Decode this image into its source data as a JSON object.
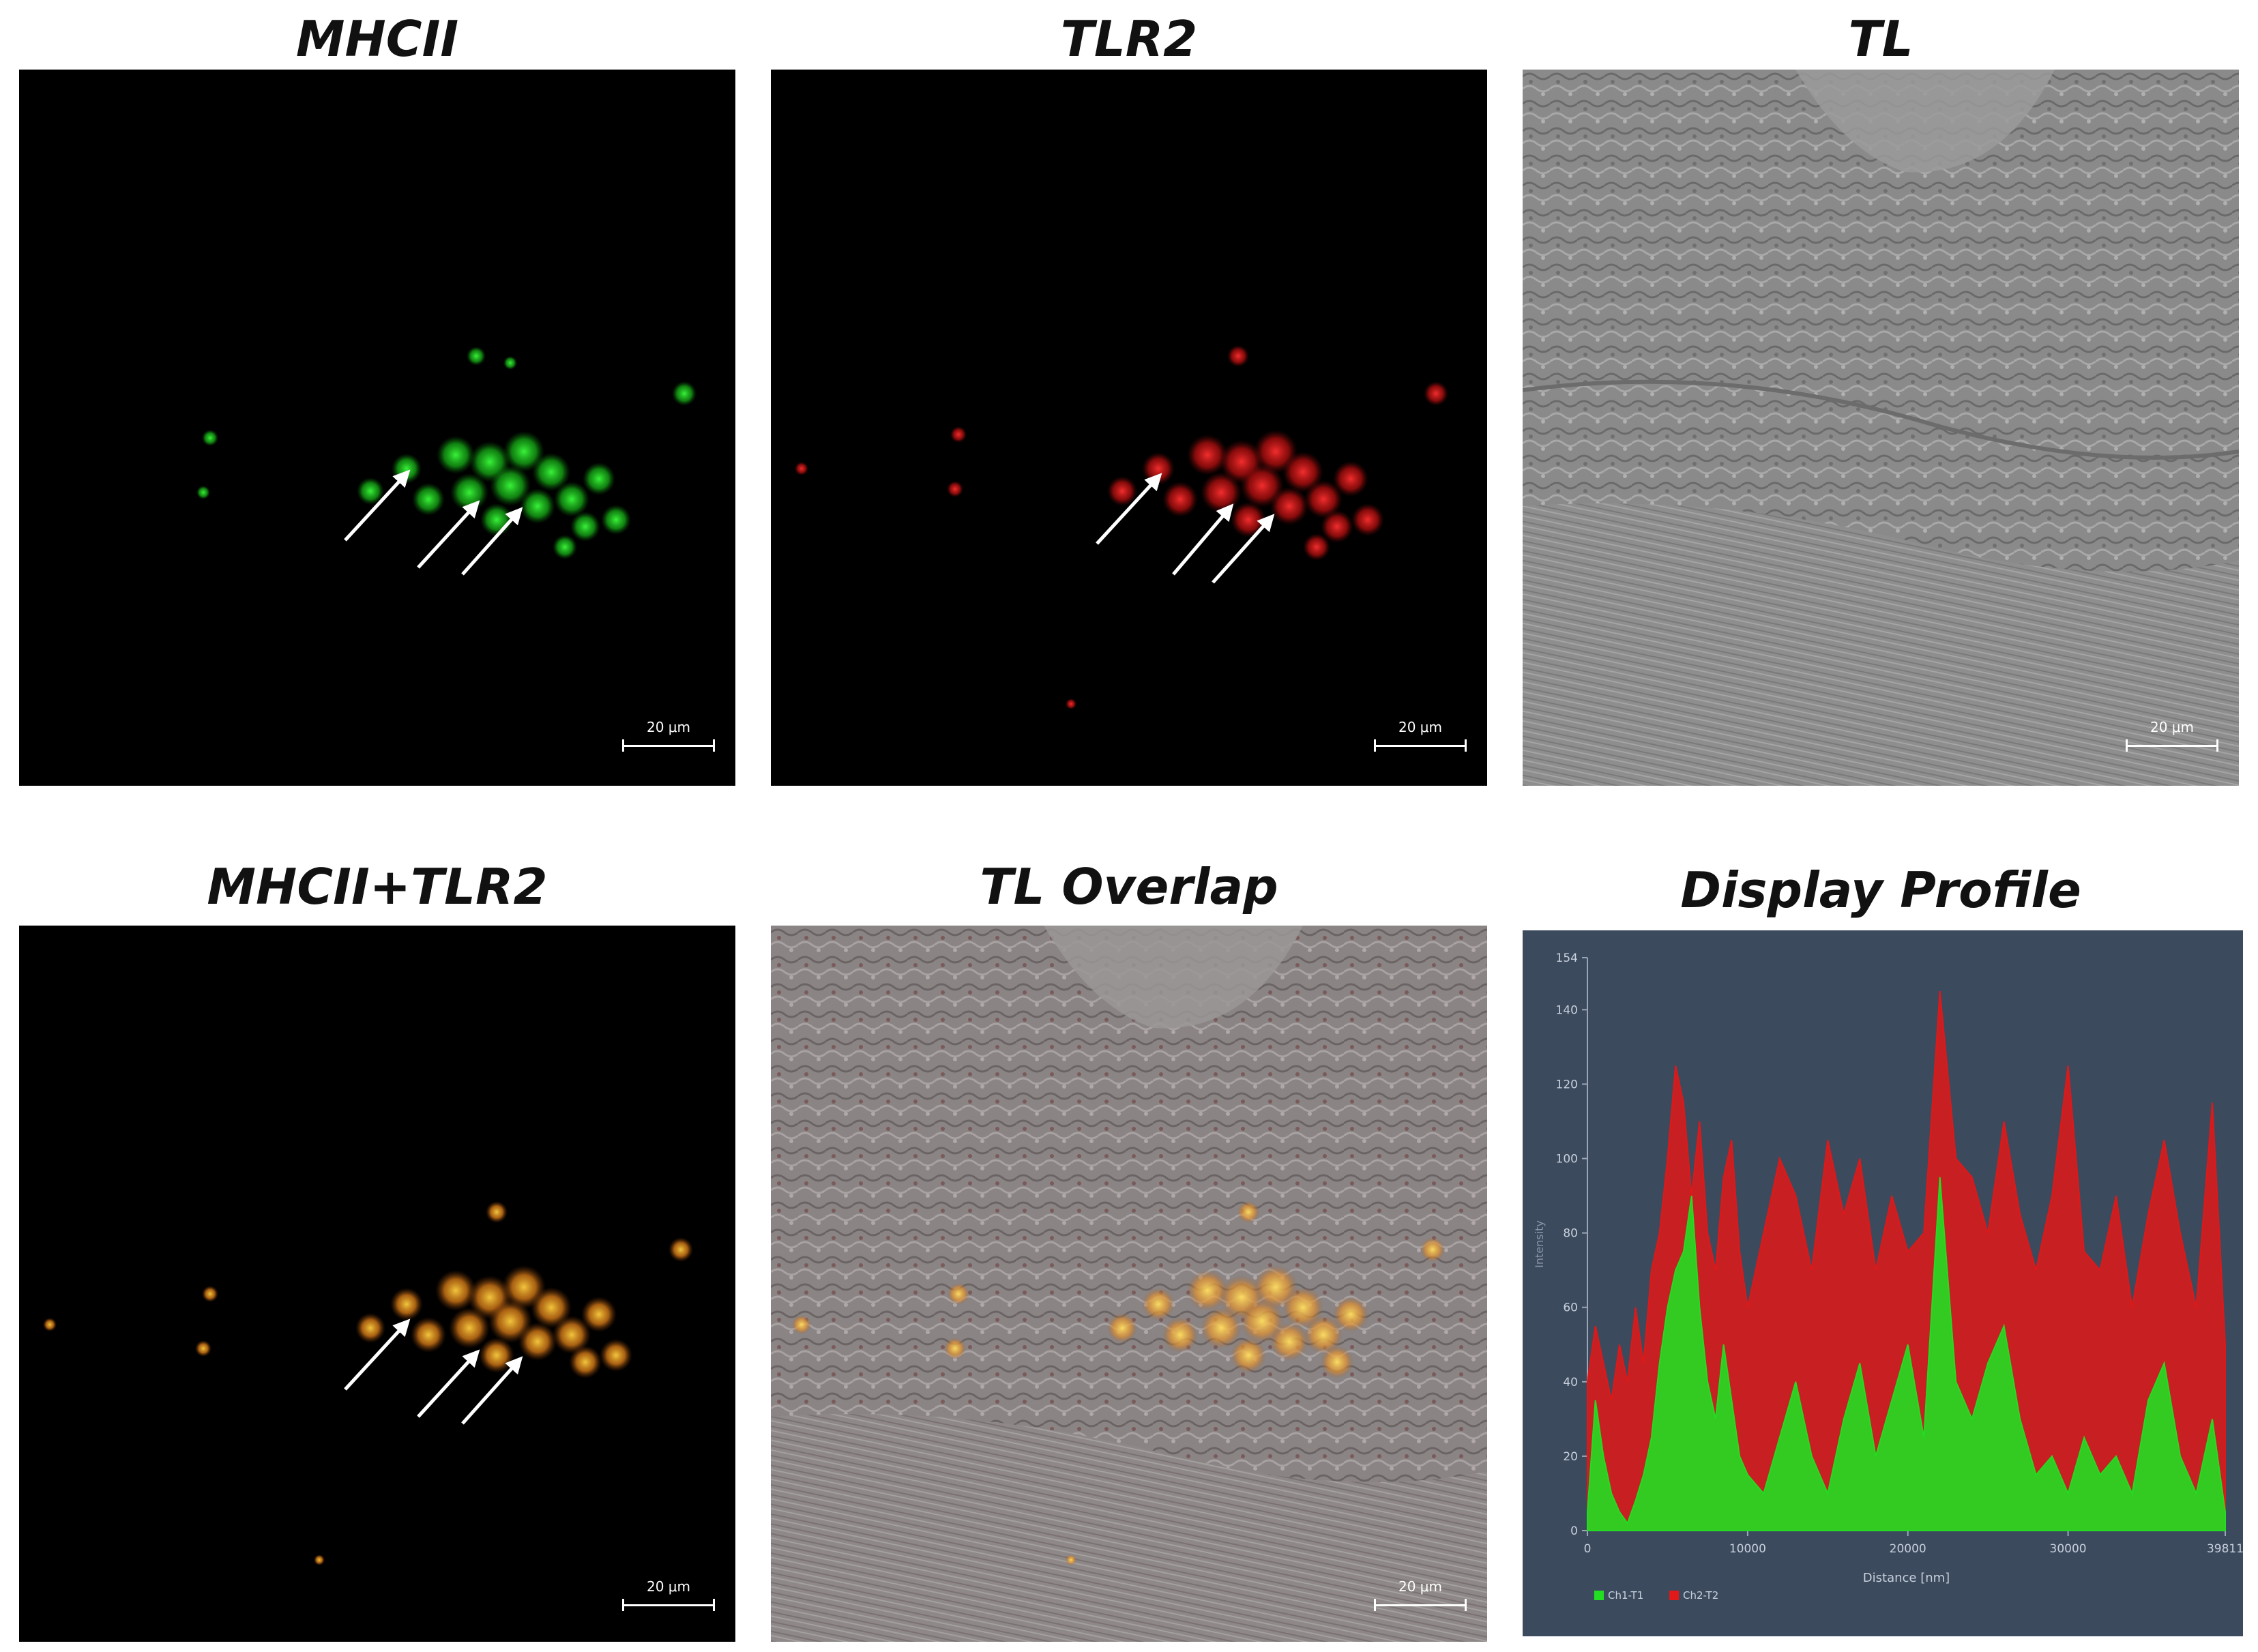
{
  "panels": [
    {
      "title": "MHCII",
      "scale": "20 μm"
    },
    {
      "title": "TLR2",
      "scale": "20 μm"
    },
    {
      "title": "TL",
      "scale": "20 μm"
    },
    {
      "title": "MHCII+TLR2",
      "scale": "20 μm"
    },
    {
      "title": "TL Overlap",
      "scale": "20 μm"
    },
    {
      "title": "Display Profile"
    }
  ],
  "colors": {
    "green": "#22dd22",
    "red": "#e01818",
    "orange": "#f0a020",
    "chart_bg": "#3c4a5e"
  },
  "chart_data": {
    "type": "line",
    "title": "Display Profile",
    "xlabel": "Distance [nm]",
    "ylabel": "Intensity",
    "xlim": [
      0,
      39811
    ],
    "ylim": [
      0,
      154
    ],
    "x_ticks": [
      "0",
      "10000",
      "20000",
      "30000",
      "39811"
    ],
    "y_ticks": [
      "0",
      "20",
      "40",
      "60",
      "80",
      "100",
      "120",
      "140",
      "154"
    ],
    "legend_position": "bottom-left",
    "series": [
      {
        "name": "Ch1-T1",
        "color": "#22dd22",
        "x": [
          0,
          500,
          1000,
          1500,
          2000,
          2500,
          3000,
          3500,
          4000,
          4500,
          5000,
          5500,
          6000,
          6500,
          7000,
          7500,
          8000,
          8500,
          9000,
          9500,
          10000,
          11000,
          12000,
          13000,
          14000,
          15000,
          16000,
          17000,
          18000,
          19000,
          20000,
          21000,
          22000,
          23000,
          24000,
          25000,
          26000,
          27000,
          28000,
          29000,
          30000,
          31000,
          32000,
          33000,
          34000,
          35000,
          36000,
          37000,
          38000,
          39000,
          39811
        ],
        "y": [
          5,
          35,
          20,
          10,
          5,
          2,
          8,
          15,
          25,
          45,
          60,
          70,
          75,
          90,
          60,
          40,
          30,
          50,
          35,
          20,
          15,
          10,
          25,
          40,
          20,
          10,
          30,
          45,
          20,
          35,
          50,
          25,
          95,
          40,
          30,
          45,
          55,
          30,
          15,
          20,
          10,
          25,
          15,
          20,
          10,
          35,
          45,
          20,
          10,
          30,
          5
        ]
      },
      {
        "name": "Ch2-T2",
        "color": "#e01818",
        "x": [
          0,
          500,
          1000,
          1500,
          2000,
          2500,
          3000,
          3500,
          4000,
          4500,
          5000,
          5500,
          6000,
          6500,
          7000,
          7500,
          8000,
          8500,
          9000,
          9500,
          10000,
          11000,
          12000,
          13000,
          14000,
          15000,
          16000,
          17000,
          18000,
          19000,
          20000,
          21000,
          22000,
          23000,
          24000,
          25000,
          26000,
          27000,
          28000,
          29000,
          30000,
          31000,
          32000,
          33000,
          34000,
          35000,
          36000,
          37000,
          38000,
          39000,
          39811
        ],
        "y": [
          40,
          55,
          45,
          35,
          50,
          40,
          60,
          45,
          70,
          80,
          100,
          125,
          115,
          90,
          110,
          80,
          70,
          95,
          105,
          75,
          60,
          80,
          100,
          90,
          70,
          105,
          85,
          100,
          70,
          90,
          75,
          80,
          145,
          100,
          95,
          80,
          110,
          85,
          70,
          90,
          125,
          75,
          70,
          90,
          60,
          85,
          105,
          80,
          60,
          115,
          50
        ]
      }
    ]
  }
}
